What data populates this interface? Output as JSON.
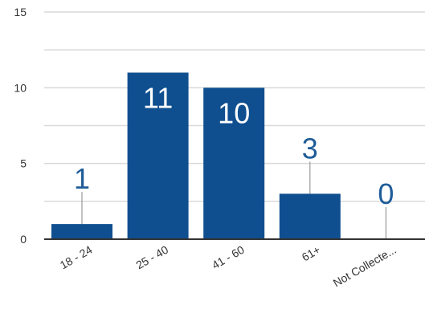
{
  "chart_data": {
    "type": "bar",
    "categories": [
      "18 - 24",
      "25 - 40",
      "41 - 60",
      "61+",
      "Not Collecte..."
    ],
    "values": [
      1,
      11,
      10,
      3,
      0
    ],
    "title": "",
    "xlabel": "",
    "ylabel": "",
    "ylim": [
      0,
      15
    ],
    "yticks": [
      0,
      5,
      10,
      15
    ],
    "grid": true,
    "legend": "none",
    "colors": {
      "bar": "#0f4f8f",
      "grid": "#d9d9d9",
      "axis": "#333333",
      "label_outside": "#1f5c99",
      "label_inside": "#ffffff",
      "leader": "#999999"
    }
  }
}
